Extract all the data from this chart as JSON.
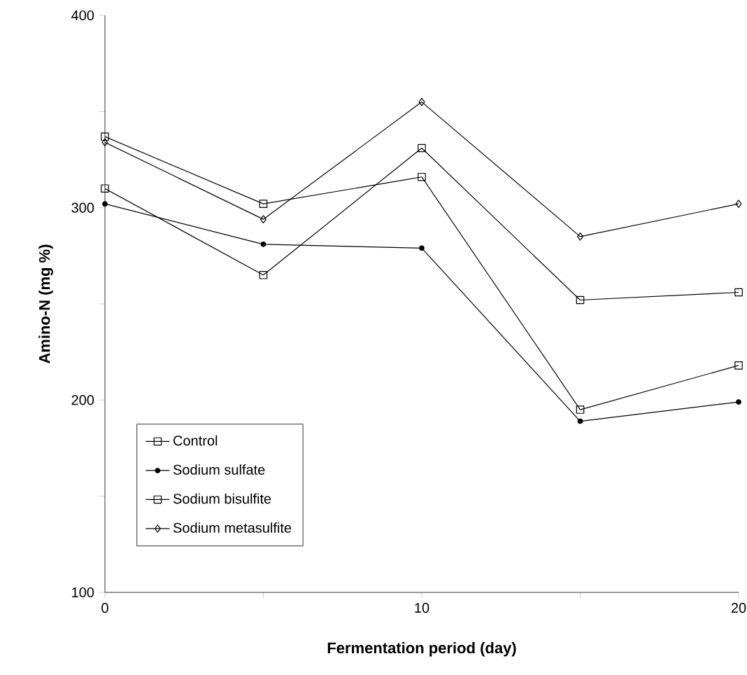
{
  "chart_data": {
    "type": "line",
    "xlabel": "Fermentation period (day)",
    "ylabel": "Amino-N (mg %)",
    "x": [
      0,
      5,
      10,
      15,
      20
    ],
    "series": [
      {
        "name": "Control",
        "color": "#000000",
        "marker": "square",
        "values": [
          337,
          302,
          316,
          195,
          218
        ]
      },
      {
        "name": "Sodium sulfate",
        "color": "#000000",
        "marker": "circle",
        "values": [
          302,
          281,
          279,
          189,
          199
        ]
      },
      {
        "name": "Sodium bisulfite",
        "color": "#000000",
        "marker": "square",
        "values": [
          310,
          265,
          331,
          252,
          256
        ]
      },
      {
        "name": "Sodium metasulfite",
        "color": "#000000",
        "marker": "diamond",
        "values": [
          334,
          294,
          355,
          285,
          302
        ]
      }
    ],
    "xlim": [
      0,
      20
    ],
    "ylim": [
      100,
      400
    ],
    "xticks": [
      0,
      {
        "value": 5,
        "label": null
      },
      10,
      {
        "value": 15,
        "label": null
      },
      20
    ],
    "yticks": [
      100,
      {
        "value": 150,
        "label": null
      },
      200,
      {
        "value": 250,
        "label": null
      },
      300,
      {
        "value": 350,
        "label": null
      },
      400
    ],
    "grid": false,
    "legend": "bottom left",
    "line_style": "solid"
  }
}
